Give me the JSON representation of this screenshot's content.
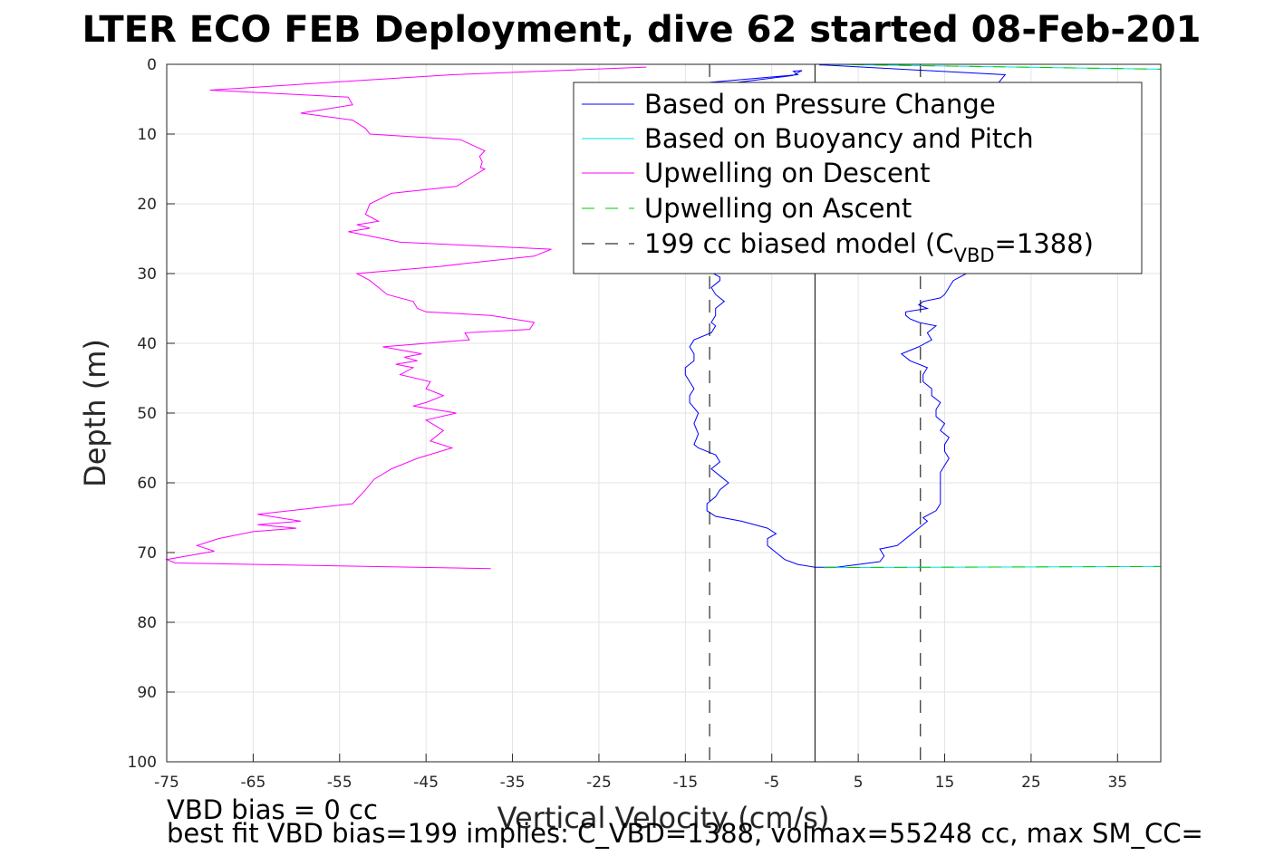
{
  "chart_data": {
    "type": "line",
    "title": "LTER ECO FEB Deployment, dive 62 started 08-Feb-201",
    "xlabel": "Vertical Velocity (cm/s)",
    "ylabel": "Depth (m)",
    "xlim": [
      -75,
      40
    ],
    "ylim": [
      0,
      100
    ],
    "y_reversed": true,
    "x_ticks": [
      -75,
      -65,
      -55,
      -45,
      -35,
      -25,
      -15,
      -5,
      5,
      15,
      25,
      35
    ],
    "y_ticks": [
      0,
      10,
      20,
      30,
      40,
      50,
      60,
      70,
      80,
      90,
      100
    ],
    "grid": true,
    "legend_position": "top-right",
    "legend": [
      {
        "key": "pressure",
        "text": "Based on Pressure Change",
        "color": "#0000ff",
        "style": "solid"
      },
      {
        "key": "buoy",
        "text": "Based on Buoyancy and Pitch",
        "color": "#00e5e5",
        "style": "solid"
      },
      {
        "key": "updesc",
        "text": "Upwelling on Descent",
        "color": "#ff00ff",
        "style": "solid"
      },
      {
        "key": "upasc",
        "text": "Upwelling on Ascent",
        "color": "#00cc00",
        "style": "dashed"
      },
      {
        "key": "model",
        "text_main": "199 cc biased model (C",
        "text_sub": "VBD",
        "text_end": "=1388)",
        "color": "#000000",
        "style": "dashed"
      }
    ],
    "series": [
      {
        "key": "updesc",
        "color": "#ff00ff",
        "style": "solid",
        "points": [
          [
            -19.5,
            0.4
          ],
          [
            -42,
            1.5
          ],
          [
            -55,
            2.5
          ],
          [
            -70,
            3.7
          ],
          [
            -54,
            4.7
          ],
          [
            -53.5,
            5.8
          ],
          [
            -59.5,
            7
          ],
          [
            -53.5,
            8
          ],
          [
            -52,
            9.2
          ],
          [
            -51.5,
            10
          ],
          [
            -41,
            10.8
          ],
          [
            -38.2,
            12.4
          ],
          [
            -38.8,
            13.2
          ],
          [
            -38.5,
            14
          ],
          [
            -38.7,
            14.8
          ],
          [
            -38.2,
            15
          ],
          [
            -41.5,
            17.5
          ],
          [
            -49,
            18.5
          ],
          [
            -51.5,
            20
          ],
          [
            -52,
            21.5
          ],
          [
            -50.5,
            22.5
          ],
          [
            -53,
            23
          ],
          [
            -51.5,
            23.5
          ],
          [
            -54,
            24
          ],
          [
            -48,
            25.5
          ],
          [
            -30.5,
            26.5
          ],
          [
            -32.5,
            27.5
          ],
          [
            -40,
            28.5
          ],
          [
            -43.5,
            29
          ],
          [
            -53,
            30
          ],
          [
            -51.5,
            31
          ],
          [
            -50.5,
            32
          ],
          [
            -49.5,
            33
          ],
          [
            -46.5,
            34
          ],
          [
            -46,
            35
          ],
          [
            -45,
            35.5
          ],
          [
            -37.5,
            36
          ],
          [
            -32.5,
            37
          ],
          [
            -33,
            38
          ],
          [
            -40.5,
            38.5
          ],
          [
            -40,
            39.5
          ],
          [
            -50,
            40.5
          ],
          [
            -45.5,
            41.5
          ],
          [
            -47.5,
            42
          ],
          [
            -46,
            42.5
          ],
          [
            -48.5,
            43
          ],
          [
            -46.5,
            43.5
          ],
          [
            -48,
            44.5
          ],
          [
            -44.5,
            45.5
          ],
          [
            -45,
            46.5
          ],
          [
            -43,
            47.5
          ],
          [
            -45,
            48.5
          ],
          [
            -46.5,
            49
          ],
          [
            -41.5,
            50
          ],
          [
            -45,
            51
          ],
          [
            -43,
            52.5
          ],
          [
            -44.5,
            54
          ],
          [
            -42,
            55
          ],
          [
            -46,
            56.5
          ],
          [
            -49,
            58
          ],
          [
            -51,
            59.5
          ],
          [
            -52,
            61
          ],
          [
            -53.5,
            63
          ],
          [
            -64.5,
            64.5
          ],
          [
            -59.5,
            65.5
          ],
          [
            -64.5,
            66
          ],
          [
            -60,
            66.5
          ],
          [
            -65,
            67
          ],
          [
            -69,
            68
          ],
          [
            -71.5,
            69
          ],
          [
            -69.5,
            69.8
          ],
          [
            -75,
            71
          ],
          [
            -74,
            71.5
          ],
          [
            -37.5,
            72.3
          ]
        ]
      },
      {
        "key": "pressure",
        "color": "#0000ff",
        "style": "solid",
        "points": [
          [
            -27,
            5.5
          ],
          [
            -25.5,
            4
          ],
          [
            -2,
            1.5
          ],
          [
            -2.5,
            1
          ],
          [
            -1.5,
            0.9
          ],
          [
            -2,
            1.2
          ],
          [
            -2.5,
            1.6
          ],
          [
            -26,
            5.2
          ],
          [
            -27.5,
            5.8
          ],
          [
            -12.5,
            29.5
          ],
          [
            -11,
            30.5
          ],
          [
            -11,
            31
          ],
          [
            -12,
            32
          ],
          [
            -11.5,
            33
          ],
          [
            -10.5,
            34
          ],
          [
            -11.5,
            35
          ],
          [
            -11.5,
            36
          ],
          [
            -12,
            37
          ],
          [
            -11.5,
            37.5
          ],
          [
            -12,
            38.5
          ],
          [
            -14,
            39.5
          ],
          [
            -14.5,
            40.5
          ],
          [
            -14,
            41.5
          ],
          [
            -14,
            42.5
          ],
          [
            -15,
            43.5
          ],
          [
            -15,
            44.5
          ],
          [
            -14.5,
            45.5
          ],
          [
            -14,
            46.5
          ],
          [
            -14.5,
            47.5
          ],
          [
            -14.5,
            48.5
          ],
          [
            -13.5,
            50
          ],
          [
            -14,
            51.5
          ],
          [
            -13.5,
            53
          ],
          [
            -14,
            54.5
          ],
          [
            -13.5,
            55
          ],
          [
            -11.5,
            56
          ],
          [
            -11,
            57
          ],
          [
            -12,
            58
          ],
          [
            -11,
            59
          ],
          [
            -10,
            60
          ],
          [
            -11,
            61
          ],
          [
            -11.5,
            62
          ],
          [
            -12.5,
            63
          ],
          [
            -12.5,
            64
          ],
          [
            -11.5,
            64.8
          ],
          [
            -8.5,
            65.5
          ],
          [
            -5.5,
            66.5
          ],
          [
            -4.5,
            67.3
          ],
          [
            -5.5,
            68
          ],
          [
            -5.5,
            69
          ],
          [
            -4.5,
            70
          ],
          [
            -3.5,
            71
          ],
          [
            -2,
            71.7
          ],
          [
            0,
            72.1
          ],
          [
            2.5,
            72.1
          ],
          [
            7.5,
            71.3
          ],
          [
            8,
            70.5
          ],
          [
            7.5,
            69.5
          ],
          [
            9.5,
            69
          ],
          [
            10,
            68.5
          ],
          [
            11,
            67.5
          ],
          [
            12,
            66.5
          ],
          [
            13,
            65.5
          ],
          [
            12.5,
            65
          ],
          [
            14,
            64
          ],
          [
            14.5,
            63
          ],
          [
            14.5,
            61.5
          ],
          [
            14.5,
            60
          ],
          [
            14.5,
            58.5
          ],
          [
            15,
            57.5
          ],
          [
            15.5,
            56.5
          ],
          [
            15,
            55.5
          ],
          [
            15,
            54.5
          ],
          [
            15.5,
            53.5
          ],
          [
            14.5,
            52.5
          ],
          [
            15,
            51.5
          ],
          [
            14,
            50.5
          ],
          [
            14,
            49.5
          ],
          [
            14.5,
            48.5
          ],
          [
            13.5,
            47.5
          ],
          [
            13.5,
            46.5
          ],
          [
            12.5,
            45.5
          ],
          [
            12.5,
            44.5
          ],
          [
            13,
            43.5
          ],
          [
            11,
            42.5
          ],
          [
            10,
            41.5
          ],
          [
            12,
            40.5
          ],
          [
            13.5,
            39.5
          ],
          [
            13,
            38.5
          ],
          [
            14,
            37.5
          ],
          [
            12,
            37
          ],
          [
            11,
            36.5
          ],
          [
            10.5,
            36
          ],
          [
            10.5,
            35.5
          ],
          [
            13,
            35
          ],
          [
            12,
            34.5
          ],
          [
            12.5,
            34
          ],
          [
            14.5,
            33.5
          ],
          [
            15,
            33
          ],
          [
            15.5,
            32
          ],
          [
            16,
            31
          ],
          [
            17.5,
            30
          ],
          [
            17,
            29.5
          ],
          [
            20.5,
            28
          ],
          [
            21,
            3
          ],
          [
            22,
            1.5
          ],
          [
            1,
            0.1
          ],
          [
            0.5,
            0.1
          ]
        ]
      },
      {
        "key": "model",
        "color": "#000000",
        "style": "dashed",
        "points": [
          [
            -12.2,
            0
          ],
          [
            -12.2,
            100
          ]
        ]
      },
      {
        "key": "model2",
        "color": "#000000",
        "style": "dashed",
        "points": [
          [
            12.2,
            0
          ],
          [
            12.2,
            100
          ]
        ]
      },
      {
        "key": "zero",
        "color": "#000000",
        "style": "solid",
        "points": [
          [
            0,
            0
          ],
          [
            0,
            100
          ]
        ]
      },
      {
        "key": "buoy",
        "color": "#00e5e5",
        "style": "solid",
        "points": [
          [
            1.5,
            0
          ],
          [
            40,
            0.7
          ]
        ]
      },
      {
        "key": "buoy2",
        "color": "#00e5e5",
        "style": "solid",
        "points": [
          [
            1,
            72.15
          ],
          [
            40,
            72
          ]
        ]
      },
      {
        "key": "upasc",
        "color": "#00cc00",
        "style": "dashed",
        "points": [
          [
            1.5,
            0
          ],
          [
            40,
            0.7
          ]
        ]
      },
      {
        "key": "upasc2",
        "color": "#00cc00",
        "style": "dashed",
        "points": [
          [
            1,
            72.15
          ],
          [
            40,
            72
          ]
        ]
      }
    ]
  },
  "notes": {
    "line1": "VBD bias = 0 cc",
    "line2": "best fit VBD bias=199 implies: C_VBD=1388, volmax=55248 cc, max SM_CC="
  }
}
